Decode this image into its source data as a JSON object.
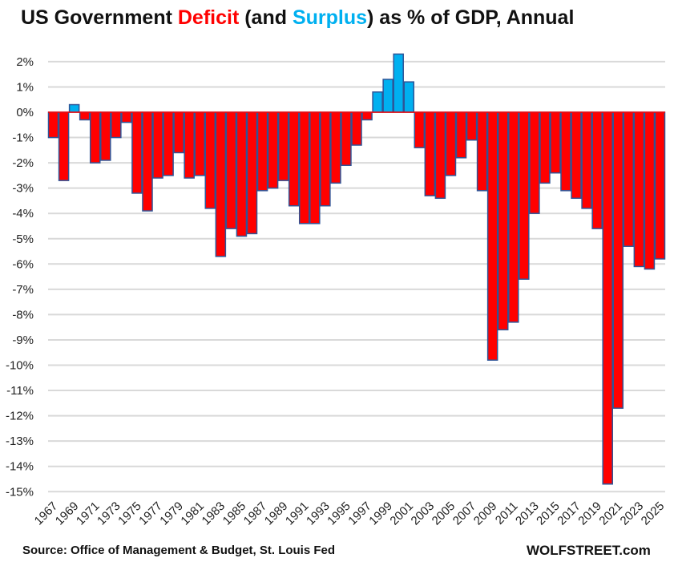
{
  "title": {
    "part1": "US Government ",
    "deficit": "Deficit",
    "part2": " (and ",
    "surplus": "Surplus",
    "part3": ") as % of GDP, Annual"
  },
  "source": "Source: Office of Management & Budget, St. Louis Fed",
  "brand": "WOLFSTREET.com",
  "chart_data": {
    "type": "bar",
    "title": "US Government Deficit (and Surplus) as % of GDP, Annual",
    "xlabel": "",
    "ylabel": "",
    "ylim": [
      -15,
      2
    ],
    "yticks": [
      "2%",
      "1%",
      "0%",
      "-1%",
      "-2%",
      "-3%",
      "-4%",
      "-5%",
      "-6%",
      "-7%",
      "-8%",
      "-9%",
      "-10%",
      "-11%",
      "-12%",
      "-13%",
      "-14%",
      "-15%"
    ],
    "grid": true,
    "colors": {
      "deficit": "#ff0000",
      "surplus": "#00b0f0",
      "border": "#2f5597",
      "grid": "#d9d9d9"
    },
    "categories": [
      1967,
      1968,
      1969,
      1970,
      1971,
      1972,
      1973,
      1974,
      1975,
      1976,
      1977,
      1978,
      1979,
      1980,
      1981,
      1982,
      1983,
      1984,
      1985,
      1986,
      1987,
      1988,
      1989,
      1990,
      1991,
      1992,
      1993,
      1994,
      1995,
      1996,
      1997,
      1998,
      1999,
      2000,
      2001,
      2002,
      2003,
      2004,
      2005,
      2006,
      2007,
      2008,
      2009,
      2010,
      2011,
      2012,
      2013,
      2014,
      2015,
      2016,
      2017,
      2018,
      2019,
      2020,
      2021,
      2022,
      2023,
      2024,
      2025
    ],
    "values": [
      -1.0,
      -2.7,
      0.3,
      -0.3,
      -2.0,
      -1.9,
      -1.0,
      -0.4,
      -3.2,
      -3.9,
      -2.6,
      -2.5,
      -1.6,
      -2.6,
      -2.5,
      -3.8,
      -5.7,
      -4.6,
      -4.9,
      -4.8,
      -3.1,
      -3.0,
      -2.7,
      -3.7,
      -4.4,
      -4.4,
      -3.7,
      -2.8,
      -2.1,
      -1.3,
      -0.3,
      0.8,
      1.3,
      2.3,
      1.2,
      -1.4,
      -3.3,
      -3.4,
      -2.5,
      -1.8,
      -1.1,
      -3.1,
      -9.8,
      -8.6,
      -8.3,
      -6.6,
      -4.0,
      -2.8,
      -2.4,
      -3.1,
      -3.4,
      -3.8,
      -4.6,
      -14.7,
      -11.7,
      -5.3,
      -6.1,
      -6.2,
      -5.8
    ]
  }
}
